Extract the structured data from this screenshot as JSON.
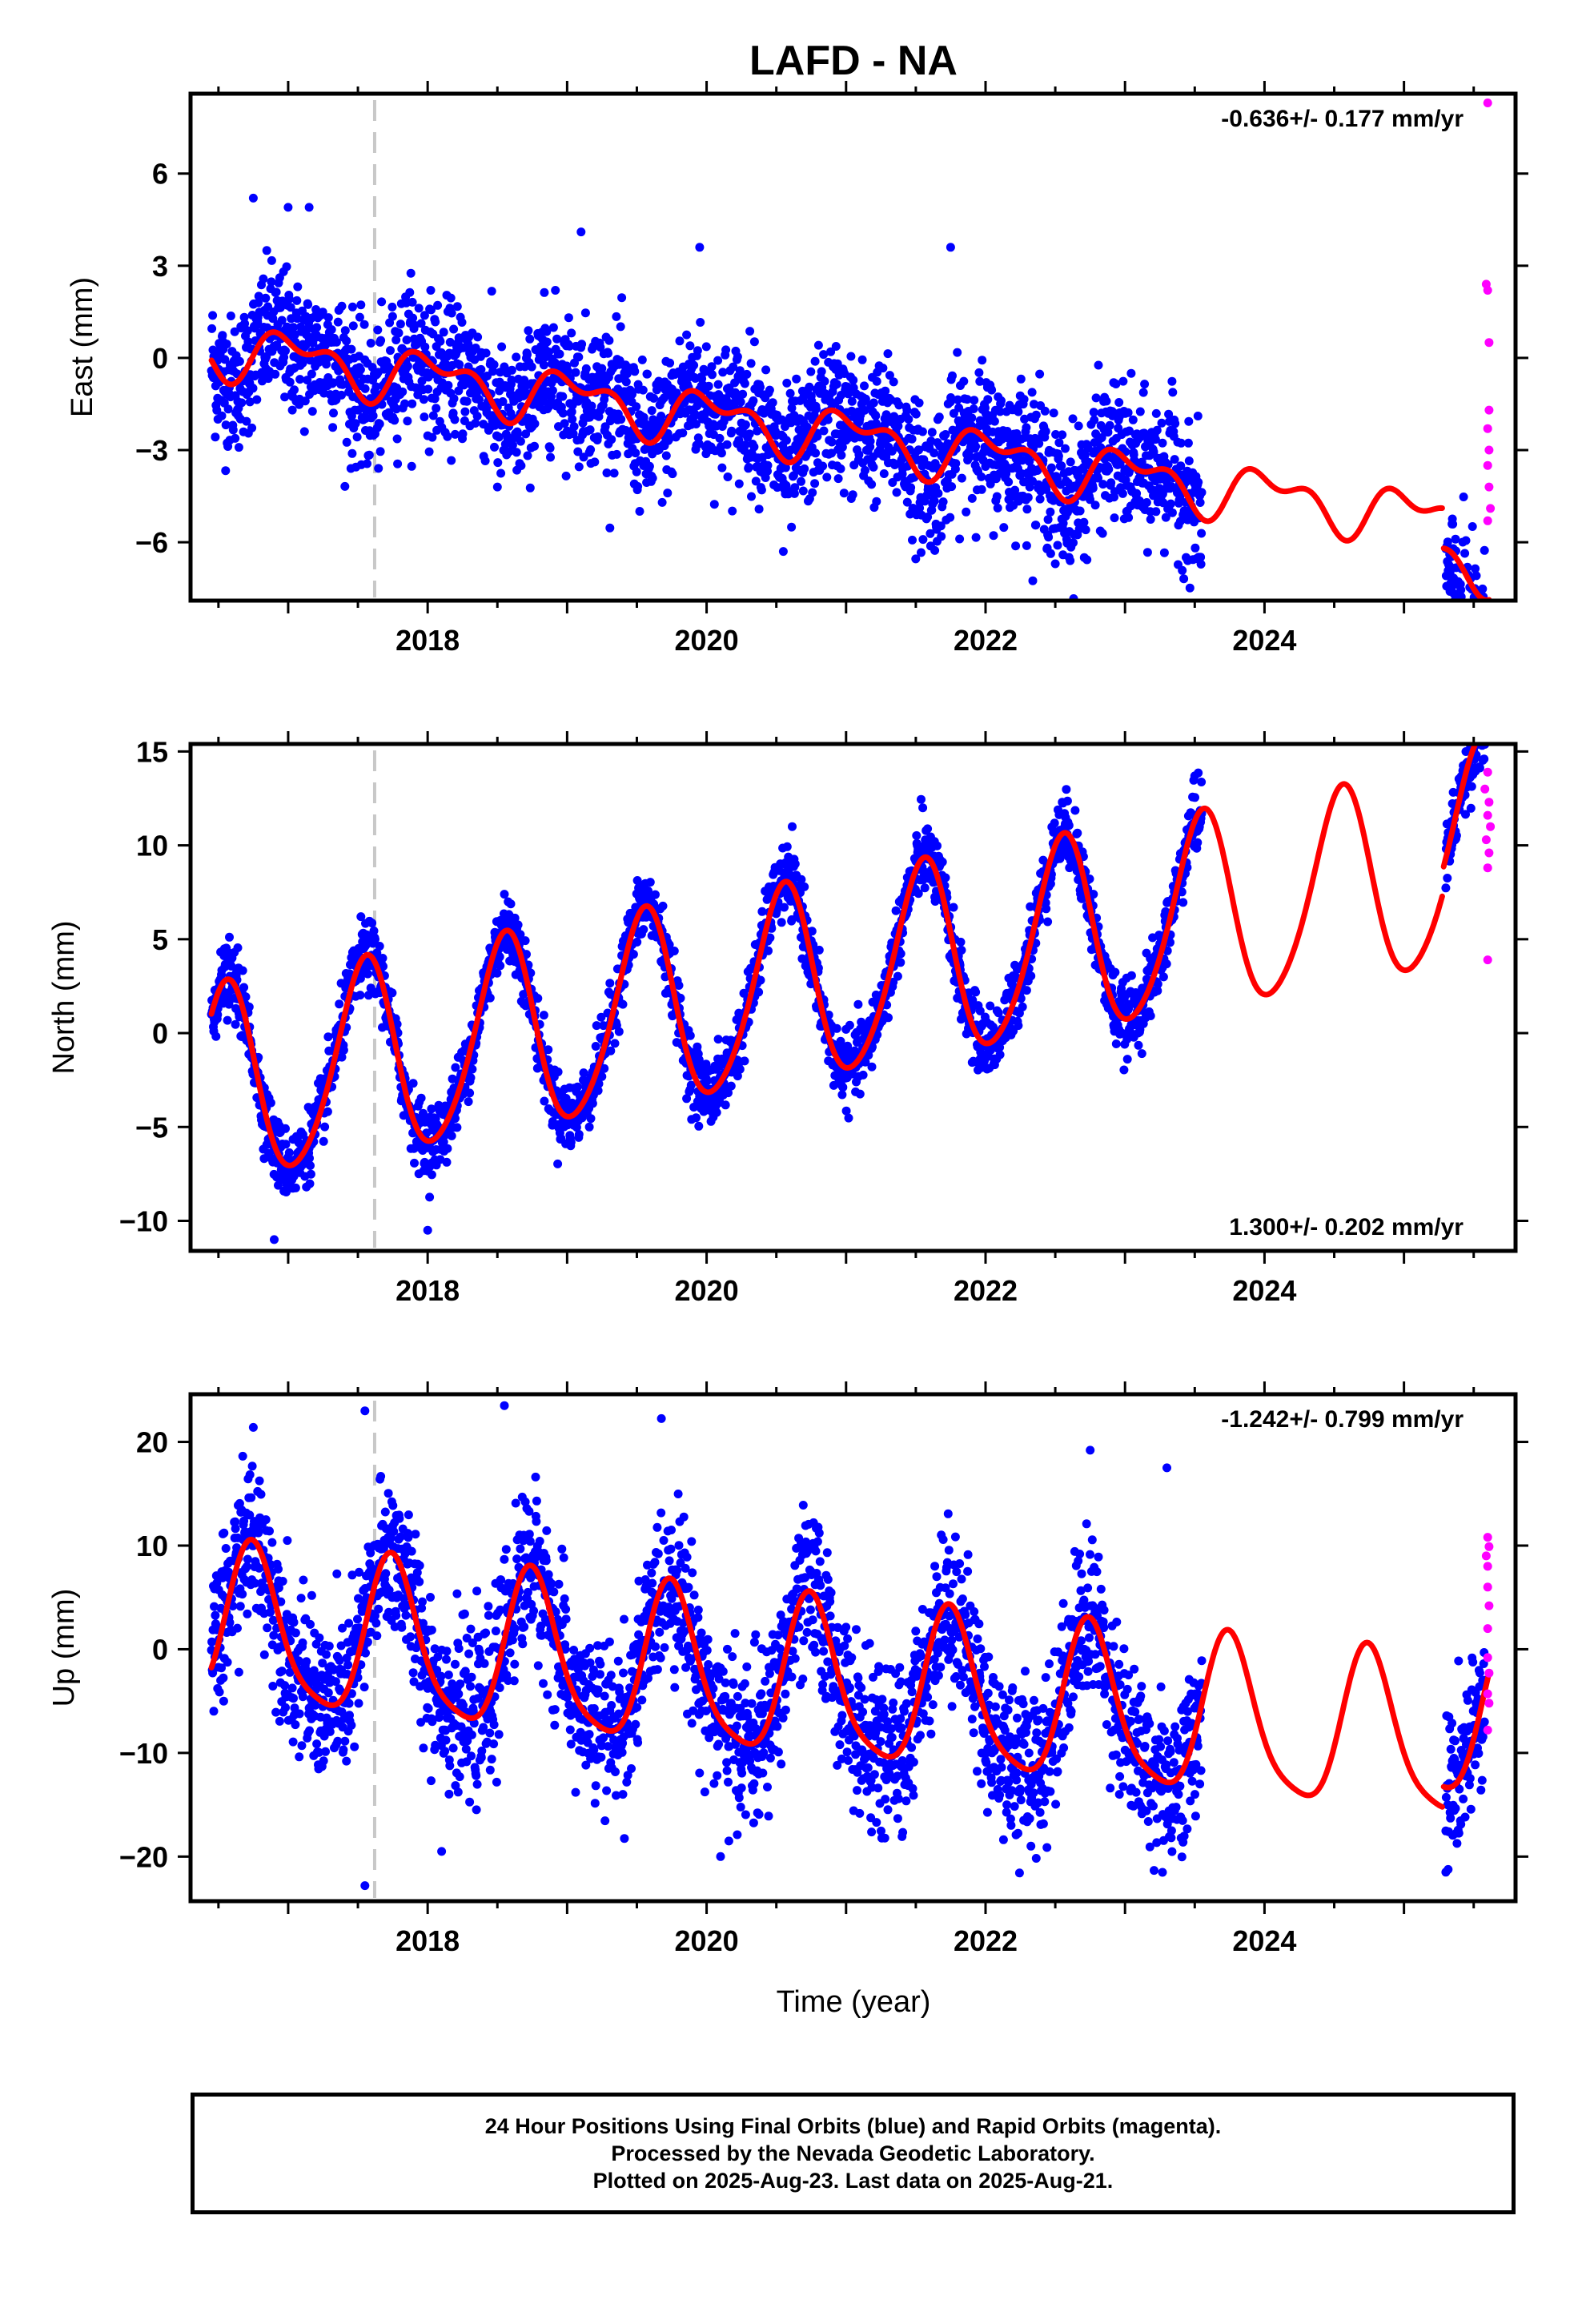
{
  "title": "LAFD - NA",
  "xlabel": "Time (year)",
  "footer": {
    "line1": "24 Hour Positions Using Final Orbits (blue) and Rapid Orbits (magenta).",
    "line2": "Processed by the Nevada Geodetic Laboratory.",
    "line3": "Plotted on 2025-Aug-23. Last data on 2025-Aug-21."
  },
  "colors": {
    "final_orbits": "#0000ff",
    "rapid_orbits": "#ff00ff",
    "model": "#ff0000",
    "event_line": "#c8c8c8",
    "frame": "#000000"
  },
  "chart_data": [
    {
      "type": "scatter",
      "component": "east",
      "ylabel": "East (mm)",
      "rate_text": "-0.636+/- 0.177 mm/yr",
      "rate_position": "top-right",
      "xlim": [
        2016.3,
        2025.8
      ],
      "ylim": [
        -7.9,
        8.6
      ],
      "yticks": [
        -6,
        -3,
        0,
        3,
        6
      ],
      "xticks": [
        2018,
        2020,
        2022,
        2024
      ],
      "event_line_x": 2017.62,
      "model": {
        "rate": -0.636,
        "offset": 0.35,
        "t0": 2016.45,
        "annual_amp": 0.7,
        "annual_peak": 2017.05,
        "semi_amp": 0.45,
        "semi_peak": 2016.85,
        "step_time": 2025.28,
        "step": -1.3,
        "t_end": 2025.61,
        "model_points": [
          [
            2016.45,
            0.3
          ],
          [
            2016.8,
            1.7
          ],
          [
            2017.1,
            1.9
          ],
          [
            2017.4,
            -0.1
          ],
          [
            2017.7,
            1.8
          ],
          [
            2018.0,
            2.0
          ],
          [
            2018.35,
            -0.3
          ],
          [
            2018.7,
            1.1
          ],
          [
            2019.1,
            1.4
          ],
          [
            2019.45,
            -0.8
          ],
          [
            2019.8,
            0.5
          ],
          [
            2020.1,
            0.7
          ],
          [
            2020.45,
            -1.5
          ],
          [
            2020.8,
            -0.2
          ],
          [
            2021.1,
            0.0
          ],
          [
            2021.45,
            -2.1
          ],
          [
            2021.8,
            -0.7
          ],
          [
            2022.1,
            -0.5
          ],
          [
            2022.45,
            -2.8
          ],
          [
            2022.8,
            -1.4
          ],
          [
            2023.1,
            -1.2
          ],
          [
            2023.45,
            -3.4
          ],
          [
            2023.8,
            -2.0
          ],
          [
            2024.1,
            -1.7
          ],
          [
            2024.45,
            -4.0
          ],
          [
            2024.8,
            -2.6
          ],
          [
            2025.1,
            -2.4
          ],
          [
            2025.45,
            -4.6
          ],
          [
            2025.61,
            -3.5
          ]
        ]
      },
      "final_orbits": {
        "segments": [
          [
            2016.45,
            2023.55
          ],
          [
            2025.3,
            2025.58
          ]
        ],
        "approx_point_count": 2700,
        "scatter_sigma": 1.1,
        "outliers": [
          [
            2016.75,
            5.2
          ],
          [
            2017.0,
            4.9
          ],
          [
            2017.15,
            4.9
          ],
          [
            2017.45,
            -3.6
          ],
          [
            2018.5,
            -4.2
          ],
          [
            2019.1,
            4.1
          ],
          [
            2019.95,
            3.6
          ],
          [
            2020.55,
            -6.3
          ],
          [
            2021.75,
            3.6
          ],
          [
            2022.5,
            -6.7
          ],
          [
            2023.45,
            -6.6
          ],
          [
            2025.33,
            -7.6
          ]
        ]
      },
      "rapid_orbits": [
        [
          2025.6,
          8.3
        ],
        [
          2025.59,
          2.4
        ],
        [
          2025.6,
          2.2
        ],
        [
          2025.61,
          0.5
        ],
        [
          2025.61,
          -1.7
        ],
        [
          2025.6,
          -2.3
        ],
        [
          2025.61,
          -3.0
        ],
        [
          2025.6,
          -3.5
        ],
        [
          2025.61,
          -4.2
        ],
        [
          2025.62,
          -4.9
        ],
        [
          2025.6,
          -5.3
        ]
      ]
    },
    {
      "type": "scatter",
      "component": "north",
      "ylabel": "North (mm)",
      "rate_text": "1.300+/- 0.202 mm/yr",
      "rate_position": "bottom-right",
      "xlim": [
        2016.3,
        2025.8
      ],
      "ylim": [
        -11.6,
        15.4
      ],
      "yticks": [
        -10,
        -5,
        0,
        5,
        10,
        15
      ],
      "xticks": [
        2018,
        2020,
        2022,
        2024
      ],
      "event_line_x": 2017.62,
      "model": {
        "rate": 1.3,
        "offset": -3.0,
        "t0": 2016.45,
        "annual_amp": 5.2,
        "annual_peak": 2016.55,
        "semi_amp": 0.6,
        "semi_peak": 2016.6,
        "step_time": 2025.28,
        "step": 1.3,
        "t_end": 2025.61,
        "model_points": [
          [
            2016.45,
            -2.0
          ],
          [
            2016.55,
            1.6
          ],
          [
            2016.95,
            -8.3
          ],
          [
            2017.5,
            2.9
          ],
          [
            2017.95,
            -7.1
          ],
          [
            2018.5,
            4.2
          ],
          [
            2018.95,
            -5.8
          ],
          [
            2019.5,
            5.4
          ],
          [
            2019.95,
            -4.5
          ],
          [
            2020.5,
            6.7
          ],
          [
            2020.95,
            -3.2
          ],
          [
            2021.5,
            7.9
          ],
          [
            2021.95,
            -2.0
          ],
          [
            2022.5,
            9.2
          ],
          [
            2022.95,
            -0.6
          ],
          [
            2023.5,
            10.5
          ],
          [
            2023.95,
            0.7
          ],
          [
            2024.5,
            11.8
          ],
          [
            2024.95,
            2.0
          ],
          [
            2025.2,
            4.0
          ],
          [
            2025.5,
            13.1
          ],
          [
            2025.61,
            11.3
          ]
        ]
      },
      "final_orbits": {
        "segments": [
          [
            2016.45,
            2023.55
          ],
          [
            2025.3,
            2025.58
          ]
        ],
        "approx_point_count": 2700,
        "scatter_sigma": 0.9,
        "outliers": [
          [
            2016.9,
            -11.0
          ],
          [
            2018.0,
            -10.5
          ],
          [
            2018.55,
            7.4
          ],
          [
            2021.55,
            12.0
          ],
          [
            2022.55,
            12.3
          ],
          [
            2023.5,
            13.7
          ],
          [
            2025.5,
            14.8
          ]
        ]
      },
      "rapid_orbits": [
        [
          2025.6,
          13.9
        ],
        [
          2025.58,
          13.0
        ],
        [
          2025.61,
          12.3
        ],
        [
          2025.6,
          11.6
        ],
        [
          2025.62,
          11.0
        ],
        [
          2025.59,
          10.3
        ],
        [
          2025.61,
          9.6
        ],
        [
          2025.6,
          8.8
        ],
        [
          2025.6,
          3.9
        ]
      ]
    },
    {
      "type": "scatter",
      "component": "up",
      "ylabel": "Up (mm)",
      "rate_text": "-1.242+/- 0.799 mm/yr",
      "rate_position": "top-right",
      "xlim": [
        2016.3,
        2025.8
      ],
      "ylim": [
        -24.3,
        24.6
      ],
      "yticks": [
        -20,
        -10,
        0,
        10,
        20
      ],
      "xticks": [
        2018,
        2020,
        2022,
        2024
      ],
      "event_line_x": 2017.62,
      "model": {
        "rate": -1.242,
        "offset": 2.0,
        "t0": 2016.45,
        "annual_amp": 7.5,
        "annual_peak": 2016.75,
        "semi_amp": 1.5,
        "semi_peak": 2016.72,
        "step_time": 2025.28,
        "step": 2.0,
        "t_end": 2025.61,
        "model_points": [
          [
            2016.45,
            1.5
          ],
          [
            2016.75,
            12.3
          ],
          [
            2017.25,
            -1.8
          ],
          [
            2017.65,
            10.5
          ],
          [
            2018.2,
            -5.0
          ],
          [
            2018.7,
            8.0
          ],
          [
            2019.2,
            -6.2
          ],
          [
            2019.7,
            6.6
          ],
          [
            2020.2,
            -7.5
          ],
          [
            2020.7,
            5.5
          ],
          [
            2021.2,
            -8.7
          ],
          [
            2021.7,
            4.2
          ],
          [
            2022.2,
            -10.0
          ],
          [
            2022.7,
            3.0
          ],
          [
            2023.2,
            -11.2
          ],
          [
            2023.7,
            1.8
          ],
          [
            2024.2,
            -12.5
          ],
          [
            2024.7,
            0.5
          ],
          [
            2025.2,
            -13.7
          ],
          [
            2025.61,
            -1.5
          ]
        ]
      },
      "final_orbits": {
        "segments": [
          [
            2016.45,
            2023.55
          ],
          [
            2025.3,
            2025.58
          ]
        ],
        "approx_point_count": 2700,
        "scatter_sigma": 3.8,
        "outliers": [
          [
            2017.55,
            23.0
          ],
          [
            2017.55,
            -22.8
          ],
          [
            2018.55,
            23.5
          ],
          [
            2016.75,
            21.4
          ],
          [
            2018.1,
            -19.5
          ],
          [
            2020.1,
            -20.0
          ],
          [
            2022.75,
            19.2
          ],
          [
            2023.3,
            17.5
          ],
          [
            2025.3,
            -21.5
          ]
        ]
      },
      "rapid_orbits": [
        [
          2025.6,
          10.8
        ],
        [
          2025.61,
          9.9
        ],
        [
          2025.59,
          9.0
        ],
        [
          2025.6,
          8.0
        ],
        [
          2025.6,
          6.0
        ],
        [
          2025.61,
          4.2
        ],
        [
          2025.6,
          2.0
        ],
        [
          2025.6,
          -0.8
        ],
        [
          2025.61,
          -2.3
        ],
        [
          2025.6,
          -4.3
        ],
        [
          2025.61,
          -5.2
        ],
        [
          2025.6,
          -7.8
        ]
      ]
    }
  ]
}
